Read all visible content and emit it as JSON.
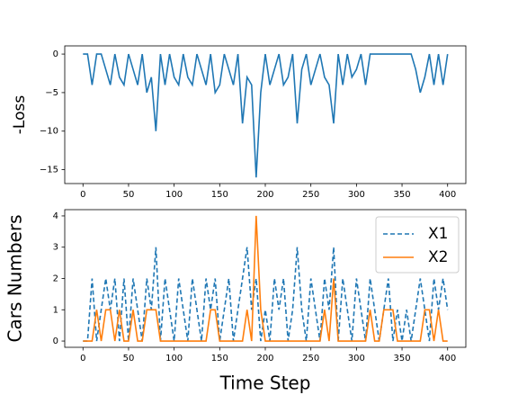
{
  "chart_data": [
    {
      "type": "line",
      "ylabel": "-Loss",
      "x": [
        0,
        5,
        10,
        15,
        20,
        25,
        30,
        35,
        40,
        45,
        50,
        55,
        60,
        65,
        70,
        75,
        80,
        85,
        90,
        95,
        100,
        105,
        110,
        115,
        120,
        125,
        130,
        135,
        140,
        145,
        150,
        155,
        160,
        165,
        170,
        175,
        180,
        185,
        190,
        195,
        200,
        205,
        210,
        215,
        220,
        225,
        230,
        235,
        240,
        245,
        250,
        255,
        260,
        265,
        270,
        275,
        280,
        285,
        290,
        295,
        300,
        305,
        310,
        315,
        320,
        325,
        330,
        335,
        340,
        345,
        350,
        355,
        360,
        365,
        370,
        375,
        380,
        385,
        390,
        395,
        400
      ],
      "series": [
        {
          "color": "#1f77b4",
          "linestyle": "solid",
          "values": [
            0,
            0,
            -4,
            0,
            0,
            -2,
            -4,
            0,
            -3,
            -4,
            0,
            -2,
            -4,
            0,
            -5,
            -3,
            -10,
            0,
            -4,
            0,
            -3,
            -4,
            0,
            -3,
            -4,
            0,
            -2,
            -4,
            0,
            -5,
            -4,
            0,
            -2,
            -4,
            0,
            -9,
            -3,
            -4,
            -16,
            -5,
            0,
            -4,
            -2,
            0,
            -4,
            -3,
            0,
            -9,
            -2,
            0,
            -4,
            -2,
            0,
            -3,
            -4,
            -9,
            0,
            -4,
            0,
            -3,
            -2,
            0,
            -4,
            0,
            0,
            0,
            0,
            0,
            0,
            0,
            0,
            0,
            0,
            -2,
            -5,
            -3,
            0,
            -4,
            0,
            -4,
            0
          ]
        }
      ],
      "xlim": [
        -20,
        420
      ],
      "xticks": [
        0,
        50,
        100,
        150,
        200,
        250,
        300,
        350,
        400
      ],
      "ylim": [
        -16.8,
        1.06
      ],
      "yticks": [
        {
          "value": -15,
          "label": "−15"
        },
        {
          "value": -10,
          "label": "−10"
        },
        {
          "value": -5,
          "label": "−5"
        },
        0
      ]
    },
    {
      "type": "line",
      "ylabel": "Cars Numbers",
      "xlabel": "Time Step",
      "legend": "upper right",
      "x": [
        0,
        5,
        10,
        15,
        20,
        25,
        30,
        35,
        40,
        45,
        50,
        55,
        60,
        65,
        70,
        75,
        80,
        85,
        90,
        95,
        100,
        105,
        110,
        115,
        120,
        125,
        130,
        135,
        140,
        145,
        150,
        155,
        160,
        165,
        170,
        175,
        180,
        185,
        190,
        195,
        200,
        205,
        210,
        215,
        220,
        225,
        230,
        235,
        240,
        245,
        250,
        255,
        260,
        265,
        270,
        275,
        280,
        285,
        290,
        295,
        300,
        305,
        310,
        315,
        320,
        325,
        330,
        335,
        340,
        345,
        350,
        355,
        360,
        365,
        370,
        375,
        380,
        385,
        390,
        395,
        400
      ],
      "series": [
        {
          "name": "X1",
          "color": "#1f77b4",
          "linestyle": "dashed",
          "values": [
            0,
            0,
            2,
            0,
            1,
            2,
            1,
            2,
            0,
            2,
            0,
            2,
            1,
            0,
            2,
            1,
            3,
            0,
            2,
            1,
            0,
            2,
            1,
            0,
            2,
            1,
            0,
            2,
            1,
            2,
            0,
            1,
            2,
            0,
            1,
            2,
            3,
            1,
            2,
            0,
            1,
            0,
            2,
            1,
            2,
            0,
            1,
            3,
            1,
            0,
            2,
            1,
            0,
            2,
            1,
            3,
            0,
            2,
            1,
            0,
            2,
            1,
            0,
            2,
            1,
            0,
            1,
            2,
            0,
            1,
            0,
            1,
            0,
            1,
            2,
            1,
            0,
            2,
            1,
            2,
            1
          ]
        },
        {
          "name": "X2",
          "color": "#ff7f0e",
          "linestyle": "solid",
          "values": [
            0,
            0,
            0,
            1,
            0,
            1,
            1,
            0,
            1,
            0,
            0,
            1,
            0,
            0,
            1,
            1,
            1,
            0,
            0,
            0,
            0,
            0,
            0,
            0,
            0,
            0,
            0,
            0,
            1,
            1,
            0,
            0,
            0,
            0,
            0,
            0,
            1,
            0,
            4,
            1,
            0,
            0,
            0,
            0,
            0,
            0,
            0,
            0,
            0,
            0,
            0,
            0,
            0,
            1,
            0,
            2,
            0,
            0,
            0,
            0,
            0,
            0,
            0,
            1,
            0,
            0,
            1,
            1,
            1,
            0,
            0,
            0,
            0,
            0,
            0,
            1,
            1,
            0,
            1,
            0,
            0
          ]
        }
      ],
      "xlim": [
        -20,
        420
      ],
      "xticks": [
        0,
        50,
        100,
        150,
        200,
        250,
        300,
        350,
        400
      ],
      "ylim": [
        -0.2,
        4.2
      ],
      "yticks": [
        0,
        1,
        2,
        3,
        4
      ]
    }
  ]
}
